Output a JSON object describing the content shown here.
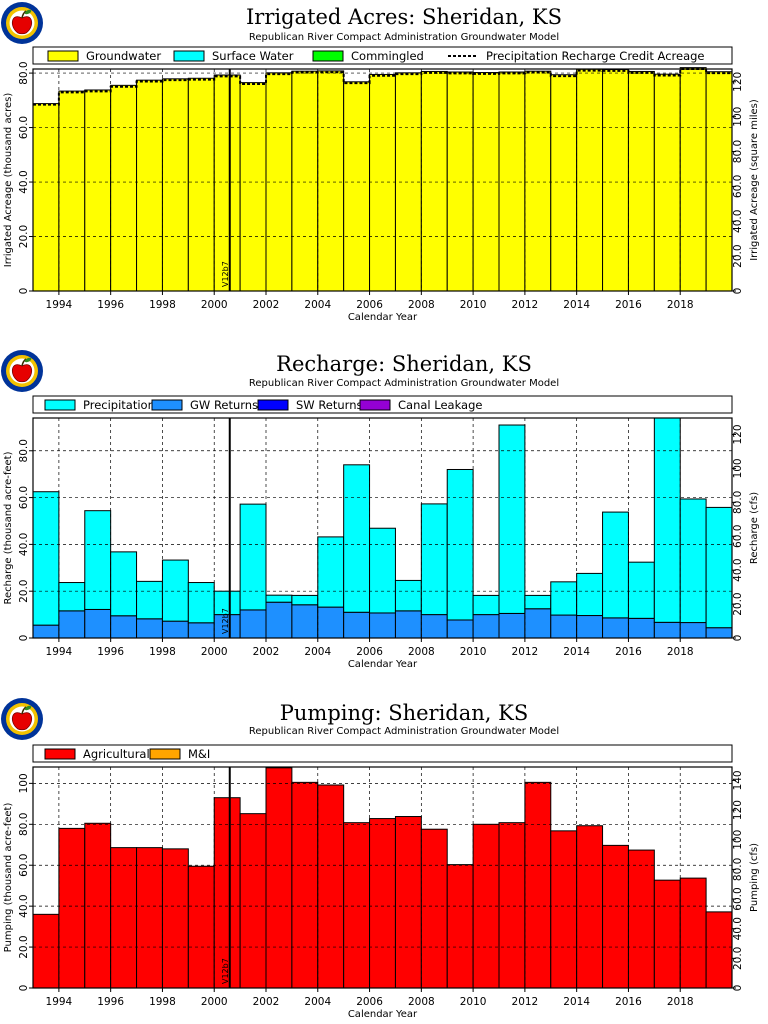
{
  "colors": {
    "groundwater": "#ffff00",
    "surface_water": "#00ffff",
    "commingled": "#00ff00",
    "precipitation": "#00ffff",
    "gw_returns": "#1e90ff",
    "sw_returns": "#0000ff",
    "canal_leakage": "#9400d3",
    "agricultural": "#ff0000",
    "mi": "#ffa500",
    "logo_outer": "#003399",
    "logo_ring": "#f2c200",
    "logo_apple": "#e60000"
  },
  "logo_icon": "apple-logo-icon",
  "chart_data": [
    {
      "type": "bar",
      "stacked": true,
      "title": "Irrigated Acres: Sheridan, KS",
      "subtitle": "Republican River Compact Administration Groundwater Model",
      "xlabel": "Calendar Year",
      "ylabel": "Irrigated Acreage (thousand acres)",
      "ylabel_right": "Irrigated Acreage (square miles)",
      "ylim": [
        0,
        81.5
      ],
      "yticks": [
        0,
        20.0,
        40.0,
        60.0,
        80.0
      ],
      "yticks_labels": [
        "0",
        "20.0",
        "40.0",
        "60.0",
        "80.0"
      ],
      "yticks_right": [
        0,
        20.0,
        40.0,
        60.0,
        80.0,
        100,
        120
      ],
      "yticks_right_labels": [
        "0",
        "20.0",
        "40.0",
        "60.0",
        "80.0",
        "100",
        "120"
      ],
      "right_scale": 1.5625,
      "xlim": [
        1993,
        2020
      ],
      "xticks": [
        1994,
        1996,
        1998,
        2000,
        2002,
        2004,
        2006,
        2008,
        2010,
        2012,
        2014,
        2016,
        2018
      ],
      "xticks_labels": [
        "1994",
        "1996",
        "1998",
        "2000",
        "2002",
        "2004",
        "2006",
        "2008",
        "2010",
        "2012",
        "2014",
        "2016",
        "2018"
      ],
      "grid": true,
      "legend_position": "top",
      "marker": {
        "x": 2000.6,
        "label": "V12b7"
      },
      "categories": [
        1993,
        1994,
        1995,
        1996,
        1997,
        1998,
        1999,
        2000,
        2001,
        2002,
        2003,
        2004,
        2005,
        2006,
        2007,
        2008,
        2009,
        2010,
        2011,
        2012,
        2013,
        2014,
        2015,
        2016,
        2017,
        2018,
        2019
      ],
      "series": [
        {
          "name": "Groundwater",
          "color_key": "groundwater",
          "values": [
            68.8,
            73.4,
            73.8,
            75.5,
            77.4,
            77.9,
            78.1,
            79.3,
            76.5,
            80.1,
            80.7,
            80.8,
            76.8,
            79.5,
            80.1,
            80.6,
            80.4,
            80.2,
            80.4,
            80.7,
            79.4,
            81.4,
            81.3,
            80.6,
            79.6,
            82.0,
            80.5
          ]
        },
        {
          "name": "Surface Water",
          "color_key": "surface_water",
          "values": [
            0,
            0,
            0,
            0,
            0,
            0,
            0,
            0,
            0,
            0,
            0,
            0,
            0,
            0,
            0,
            0,
            0,
            0,
            0,
            0,
            0,
            0,
            0,
            0,
            0,
            0,
            0
          ]
        },
        {
          "name": "Commingled",
          "color_key": "commingled",
          "values": [
            0,
            0,
            0,
            0,
            0,
            0,
            0,
            0,
            0,
            0,
            0,
            0,
            0,
            0,
            0,
            0,
            0,
            0,
            0,
            0,
            0,
            0,
            0,
            0,
            0,
            0,
            0
          ]
        }
      ],
      "line_series": {
        "name": "Precipitation Recharge Credit Acreage",
        "style": "dashed",
        "values": [
          68.4,
          72.9,
          73.3,
          75.0,
          76.9,
          77.4,
          77.6,
          78.8,
          76.0,
          79.6,
          80.2,
          80.3,
          76.3,
          79.0,
          79.6,
          80.1,
          79.9,
          79.7,
          79.9,
          80.2,
          78.9,
          80.9,
          80.8,
          80.1,
          79.1,
          81.5,
          80.0
        ]
      },
      "legend": [
        {
          "label": "Groundwater",
          "color_key": "groundwater",
          "kind": "box"
        },
        {
          "label": "Surface Water",
          "color_key": "surface_water",
          "kind": "box"
        },
        {
          "label": "Commingled",
          "color_key": "commingled",
          "kind": "box"
        },
        {
          "label": "Precipitation Recharge Credit Acreage",
          "kind": "dash"
        }
      ]
    },
    {
      "type": "bar",
      "stacked": true,
      "title": "Recharge: Sheridan, KS",
      "subtitle": "Republican River Compact Administration Groundwater Model",
      "xlabel": "Calendar Year",
      "ylabel": "Recharge (thousand acre-feet)",
      "ylabel_right": "Recharge (cfs)",
      "ylim": [
        0,
        94
      ],
      "yticks": [
        0,
        20.0,
        40.0,
        60.0,
        80.0
      ],
      "yticks_labels": [
        "0",
        "20.0",
        "40.0",
        "60.0",
        "80.0"
      ],
      "yticks_right": [
        0,
        20.0,
        40.0,
        60.0,
        80.0,
        100,
        120
      ],
      "yticks_right_labels": [
        "0",
        "20.0",
        "40.0",
        "60.0",
        "80.0",
        "100",
        "120"
      ],
      "right_scale": 1.38,
      "xlim": [
        1993,
        2020
      ],
      "xticks": [
        1994,
        1996,
        1998,
        2000,
        2002,
        2004,
        2006,
        2008,
        2010,
        2012,
        2014,
        2016,
        2018
      ],
      "xticks_labels": [
        "1994",
        "1996",
        "1998",
        "2000",
        "2002",
        "2004",
        "2006",
        "2008",
        "2010",
        "2012",
        "2014",
        "2016",
        "2018"
      ],
      "grid": true,
      "legend_position": "top",
      "marker": {
        "x": 2000.6,
        "label": "V12b7"
      },
      "categories": [
        1993,
        1994,
        1995,
        1996,
        1997,
        1998,
        1999,
        2000,
        2001,
        2002,
        2003,
        2004,
        2005,
        2006,
        2007,
        2008,
        2009,
        2010,
        2011,
        2012,
        2013,
        2014,
        2015,
        2016,
        2017,
        2018,
        2019
      ],
      "series": [
        {
          "name": "GW Returns",
          "color_key": "gw_returns",
          "values": [
            5.5,
            11.6,
            12.2,
            9.5,
            8.2,
            7.2,
            6.5,
            10.0,
            12.0,
            15.3,
            14.2,
            13.2,
            11.0,
            10.7,
            11.6,
            10.0,
            7.7,
            10.0,
            10.5,
            12.5,
            9.8,
            9.6,
            8.6,
            8.4,
            6.7,
            6.6,
            4.4
          ]
        },
        {
          "name": "SW Returns",
          "color_key": "sw_returns",
          "values": [
            0,
            0,
            0,
            0,
            0,
            0,
            0,
            0,
            0,
            0,
            0,
            0,
            0,
            0,
            0,
            0,
            0,
            0,
            0,
            0,
            0,
            0,
            0,
            0,
            0,
            0,
            0
          ]
        },
        {
          "name": "Canal Leakage",
          "color_key": "canal_leakage",
          "values": [
            0,
            0,
            0,
            0,
            0,
            0,
            0,
            0,
            0,
            0,
            0,
            0,
            0,
            0,
            0,
            0,
            0,
            0,
            0,
            0,
            0,
            0,
            0,
            0,
            0,
            0,
            0
          ]
        },
        {
          "name": "Precipitation",
          "color_key": "precipitation",
          "values": [
            57.0,
            12.1,
            42.2,
            27.3,
            16.0,
            26.1,
            17.2,
            10.0,
            45.2,
            3.0,
            4.0,
            30.0,
            63.0,
            36.2,
            13.0,
            47.3,
            64.3,
            8.2,
            80.5,
            5.7,
            14.2,
            18.0,
            45.2,
            24.0,
            87.3,
            52.8,
            51.4
          ]
        }
      ],
      "legend": [
        {
          "label": "Precipitation",
          "color_key": "precipitation",
          "kind": "box"
        },
        {
          "label": "GW Returns",
          "color_key": "gw_returns",
          "kind": "box"
        },
        {
          "label": "SW Returns",
          "color_key": "sw_returns",
          "kind": "box"
        },
        {
          "label": "Canal Leakage",
          "color_key": "canal_leakage",
          "kind": "box"
        }
      ]
    },
    {
      "type": "bar",
      "stacked": true,
      "title": "Pumping: Sheridan, KS",
      "subtitle": "Republican River Compact Administration Groundwater Model",
      "xlabel": "Calendar Year",
      "ylabel": "Pumping (thousand acre-feet)",
      "ylabel_right": "Pumping (cfs)",
      "ylim": [
        0,
        108
      ],
      "yticks": [
        0,
        20.0,
        40.0,
        60.0,
        80.0,
        100
      ],
      "yticks_labels": [
        "0",
        "20.0",
        "40.0",
        "60.0",
        "80.0",
        "100"
      ],
      "yticks_right": [
        0,
        20.0,
        40.0,
        60.0,
        80.0,
        100,
        120,
        140
      ],
      "yticks_right_labels": [
        "0",
        "20.0",
        "40.0",
        "60.0",
        "80.0",
        "100",
        "120",
        "140"
      ],
      "right_scale": 1.38,
      "xlim": [
        1993,
        2020
      ],
      "xticks": [
        1994,
        1996,
        1998,
        2000,
        2002,
        2004,
        2006,
        2008,
        2010,
        2012,
        2014,
        2016,
        2018
      ],
      "xticks_labels": [
        "1994",
        "1996",
        "1998",
        "2000",
        "2002",
        "2004",
        "2006",
        "2008",
        "2010",
        "2012",
        "2014",
        "2016",
        "2018"
      ],
      "grid": true,
      "legend_position": "top",
      "marker": {
        "x": 2000.6,
        "label": "V12b7"
      },
      "categories": [
        1993,
        1994,
        1995,
        1996,
        1997,
        1998,
        1999,
        2000,
        2001,
        2002,
        2003,
        2004,
        2005,
        2006,
        2007,
        2008,
        2009,
        2010,
        2011,
        2012,
        2013,
        2014,
        2015,
        2016,
        2017,
        2018,
        2019
      ],
      "series": [
        {
          "name": "Agricultural",
          "color_key": "agricultural",
          "values": [
            36.0,
            78.0,
            80.5,
            68.6,
            68.6,
            68.0,
            59.5,
            93.0,
            85.2,
            107.6,
            100.5,
            99.2,
            80.8,
            82.8,
            83.8,
            77.6,
            60.3,
            80.0,
            80.8,
            100.5,
            76.8,
            79.3,
            69.7,
            67.4,
            52.7,
            53.7,
            37.2
          ]
        },
        {
          "name": "M&I",
          "color_key": "mi",
          "values": [
            0,
            0,
            0,
            0,
            0,
            0,
            0,
            0,
            0,
            0,
            0,
            0,
            0,
            0,
            0,
            0,
            0,
            0,
            0,
            0,
            0,
            0,
            0,
            0,
            0,
            0,
            0
          ]
        }
      ],
      "legend": [
        {
          "label": "Agricultural",
          "color_key": "agricultural",
          "kind": "box"
        },
        {
          "label": "M&I",
          "color_key": "mi",
          "kind": "box"
        }
      ]
    }
  ]
}
